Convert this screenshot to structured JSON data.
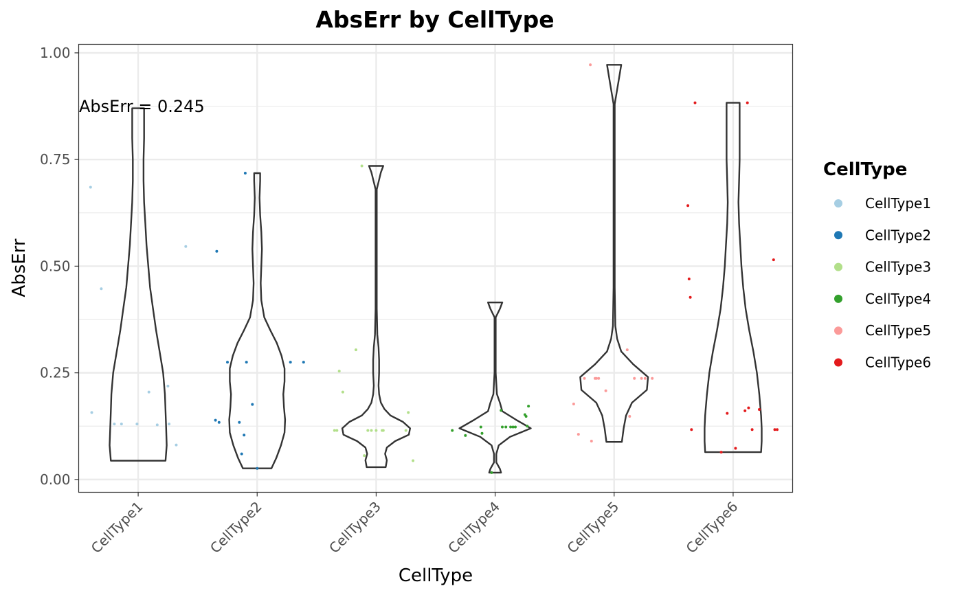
{
  "chart_data": {
    "type": "violin",
    "title": "AbsErr by CellType",
    "xlabel": "CellType",
    "ylabel": "AbsErr",
    "ylim": [
      -0.03,
      1.02
    ],
    "yticks": [
      0.0,
      0.25,
      0.5,
      0.75,
      1.0
    ],
    "ytick_labels": [
      "0.00",
      "0.25",
      "0.50",
      "0.75",
      "1.00"
    ],
    "grid": true,
    "annotation": "AbsErr = 0.245",
    "categories": [
      "CellType1",
      "CellType2",
      "CellType3",
      "CellType4",
      "CellType5",
      "CellType6"
    ],
    "legend": {
      "title": "CellType",
      "position": "right",
      "entries": [
        "CellType1",
        "CellType2",
        "CellType3",
        "CellType4",
        "CellType5",
        "CellType6"
      ]
    },
    "colors": [
      "#a6cee3",
      "#1f78b4",
      "#b2df8a",
      "#33a02c",
      "#fb9a99",
      "#e31a1c"
    ],
    "violins": [
      {
        "category": "CellType1",
        "min": 0.044,
        "max": 0.87,
        "density": [
          [
            0.044,
            0.46
          ],
          [
            0.08,
            0.48
          ],
          [
            0.12,
            0.47
          ],
          [
            0.16,
            0.46
          ],
          [
            0.2,
            0.45
          ],
          [
            0.25,
            0.42
          ],
          [
            0.3,
            0.36
          ],
          [
            0.35,
            0.3
          ],
          [
            0.4,
            0.25
          ],
          [
            0.45,
            0.2
          ],
          [
            0.5,
            0.17
          ],
          [
            0.55,
            0.14
          ],
          [
            0.6,
            0.12
          ],
          [
            0.65,
            0.1
          ],
          [
            0.7,
            0.09
          ],
          [
            0.75,
            0.09
          ],
          [
            0.8,
            0.1
          ],
          [
            0.84,
            0.1
          ],
          [
            0.87,
            0.1
          ]
        ]
      },
      {
        "category": "CellType2",
        "min": 0.026,
        "max": 0.718,
        "density": [
          [
            0.026,
            0.24
          ],
          [
            0.05,
            0.32
          ],
          [
            0.08,
            0.4
          ],
          [
            0.11,
            0.46
          ],
          [
            0.14,
            0.47
          ],
          [
            0.17,
            0.45
          ],
          [
            0.2,
            0.44
          ],
          [
            0.23,
            0.46
          ],
          [
            0.26,
            0.46
          ],
          [
            0.29,
            0.41
          ],
          [
            0.32,
            0.33
          ],
          [
            0.35,
            0.22
          ],
          [
            0.38,
            0.12
          ],
          [
            0.42,
            0.07
          ],
          [
            0.46,
            0.06
          ],
          [
            0.5,
            0.07
          ],
          [
            0.54,
            0.08
          ],
          [
            0.58,
            0.07
          ],
          [
            0.62,
            0.05
          ],
          [
            0.66,
            0.04
          ],
          [
            0.7,
            0.05
          ],
          [
            0.718,
            0.05
          ]
        ]
      },
      {
        "category": "CellType3",
        "min": 0.029,
        "max": 0.735,
        "density": [
          [
            0.029,
            0.16
          ],
          [
            0.045,
            0.18
          ],
          [
            0.06,
            0.15
          ],
          [
            0.075,
            0.18
          ],
          [
            0.09,
            0.32
          ],
          [
            0.105,
            0.55
          ],
          [
            0.12,
            0.57
          ],
          [
            0.135,
            0.45
          ],
          [
            0.15,
            0.24
          ],
          [
            0.165,
            0.14
          ],
          [
            0.18,
            0.08
          ],
          [
            0.2,
            0.05
          ],
          [
            0.22,
            0.04
          ],
          [
            0.25,
            0.05
          ],
          [
            0.28,
            0.05
          ],
          [
            0.31,
            0.04
          ],
          [
            0.34,
            0.02
          ],
          [
            0.4,
            0.01
          ],
          [
            0.5,
            0.01
          ],
          [
            0.6,
            0.01
          ],
          [
            0.68,
            0.01
          ],
          [
            0.72,
            0.08
          ],
          [
            0.735,
            0.12
          ]
        ]
      },
      {
        "category": "CellType4",
        "min": 0.016,
        "max": 0.415,
        "density": [
          [
            0.016,
            0.1
          ],
          [
            0.025,
            0.08
          ],
          [
            0.04,
            0.02
          ],
          [
            0.06,
            0.02
          ],
          [
            0.08,
            0.06
          ],
          [
            0.1,
            0.25
          ],
          [
            0.12,
            0.6
          ],
          [
            0.14,
            0.35
          ],
          [
            0.16,
            0.12
          ],
          [
            0.18,
            0.08
          ],
          [
            0.2,
            0.03
          ],
          [
            0.25,
            0.01
          ],
          [
            0.3,
            0.01
          ],
          [
            0.35,
            0.01
          ],
          [
            0.38,
            0.01
          ],
          [
            0.4,
            0.08
          ],
          [
            0.415,
            0.12
          ]
        ]
      },
      {
        "category": "CellType5",
        "min": 0.088,
        "max": 0.972,
        "density": [
          [
            0.088,
            0.13
          ],
          [
            0.12,
            0.16
          ],
          [
            0.15,
            0.2
          ],
          [
            0.18,
            0.3
          ],
          [
            0.21,
            0.55
          ],
          [
            0.24,
            0.57
          ],
          [
            0.27,
            0.32
          ],
          [
            0.3,
            0.12
          ],
          [
            0.33,
            0.05
          ],
          [
            0.36,
            0.02
          ],
          [
            0.45,
            0.01
          ],
          [
            0.6,
            0.01
          ],
          [
            0.75,
            0.01
          ],
          [
            0.88,
            0.01
          ],
          [
            0.93,
            0.07
          ],
          [
            0.972,
            0.12
          ]
        ]
      },
      {
        "category": "CellType6",
        "min": 0.064,
        "max": 0.883,
        "density": [
          [
            0.064,
            0.47
          ],
          [
            0.09,
            0.48
          ],
          [
            0.12,
            0.48
          ],
          [
            0.15,
            0.47
          ],
          [
            0.2,
            0.44
          ],
          [
            0.25,
            0.4
          ],
          [
            0.3,
            0.34
          ],
          [
            0.35,
            0.27
          ],
          [
            0.4,
            0.21
          ],
          [
            0.45,
            0.17
          ],
          [
            0.5,
            0.14
          ],
          [
            0.55,
            0.12
          ],
          [
            0.6,
            0.1
          ],
          [
            0.65,
            0.09
          ],
          [
            0.7,
            0.1
          ],
          [
            0.75,
            0.11
          ],
          [
            0.8,
            0.11
          ],
          [
            0.85,
            0.11
          ],
          [
            0.883,
            0.11
          ]
        ]
      }
    ],
    "points": [
      {
        "category": "CellType1",
        "jitter": [
          -0.4,
          -0.39,
          -0.31,
          -0.2,
          -0.14,
          -0.01,
          0.09,
          0.16,
          0.25,
          0.26,
          0.32,
          0.4
        ],
        "values": [
          0.685,
          0.157,
          0.447,
          0.13,
          0.13,
          0.13,
          0.205,
          0.128,
          0.219,
          0.13,
          0.081,
          0.546
        ]
      },
      {
        "category": "CellType2",
        "jitter": [
          -0.34,
          -0.35,
          -0.32,
          -0.25,
          -0.15,
          -0.13,
          -0.11,
          -0.1,
          -0.09,
          0.0,
          -0.04,
          0.28,
          0.39
        ],
        "values": [
          0.535,
          0.139,
          0.134,
          0.275,
          0.134,
          0.06,
          0.104,
          0.718,
          0.275,
          0.026,
          0.176,
          0.275,
          0.275
        ]
      },
      {
        "category": "CellType3",
        "jitter": [
          -0.35,
          -0.33,
          -0.31,
          -0.28,
          -0.17,
          -0.12,
          -0.1,
          -0.07,
          -0.04,
          0.0,
          0.05,
          0.06,
          0.25,
          0.27,
          0.31
        ],
        "values": [
          0.115,
          0.115,
          0.254,
          0.205,
          0.304,
          0.735,
          0.056,
          0.115,
          0.115,
          0.115,
          0.115,
          0.115,
          0.115,
          0.157,
          0.044
        ]
      },
      {
        "category": "CellType4",
        "jitter": [
          -0.36,
          -0.25,
          -0.12,
          -0.11,
          -0.03,
          0.05,
          0.06,
          0.09,
          0.13,
          0.15,
          0.17,
          0.25,
          0.26,
          0.27,
          0.28
        ],
        "values": [
          0.115,
          0.103,
          0.123,
          0.108,
          0.016,
          0.162,
          0.123,
          0.123,
          0.123,
          0.123,
          0.123,
          0.152,
          0.148,
          0.125,
          0.172
        ]
      },
      {
        "category": "CellType5",
        "jitter": [
          -0.34,
          -0.3,
          -0.25,
          -0.2,
          -0.19,
          -0.16,
          -0.15,
          -0.13,
          -0.07,
          0.11,
          0.13,
          0.17,
          0.23,
          0.26,
          0.32
        ],
        "values": [
          0.177,
          0.106,
          0.237,
          0.972,
          0.09,
          0.237,
          0.237,
          0.237,
          0.208,
          0.304,
          0.148,
          0.237,
          0.237,
          0.237,
          0.237
        ]
      },
      {
        "category": "CellType6",
        "jitter": [
          -0.38,
          -0.37,
          -0.36,
          -0.35,
          -0.32,
          -0.1,
          -0.05,
          0.02,
          0.1,
          0.12,
          0.13,
          0.16,
          0.22,
          0.34,
          0.35,
          0.37
        ],
        "values": [
          0.642,
          0.47,
          0.427,
          0.117,
          0.883,
          0.064,
          0.155,
          0.073,
          0.161,
          0.883,
          0.168,
          0.117,
          0.164,
          0.515,
          0.117,
          0.117
        ]
      }
    ]
  }
}
